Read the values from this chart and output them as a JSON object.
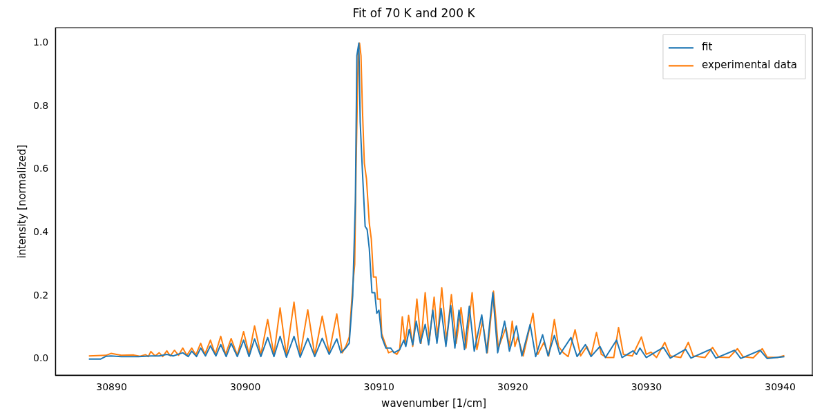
{
  "chart_data": {
    "type": "line",
    "title": "Fit of 70 K and 200 K",
    "xlabel": "wavenumber [1/cm]",
    "ylabel": "intensity [normalized]",
    "xlim": [
      30885.8,
      30942.4
    ],
    "ylim": [
      -0.051,
      1.048
    ],
    "xticks": [
      30890,
      30900,
      30910,
      30920,
      30930,
      30940
    ],
    "yticks": [
      {
        "value": 0,
        "label": "0.0"
      },
      0.2,
      0.4,
      0.6,
      0.8,
      {
        "value": 1,
        "label": "1.0"
      }
    ],
    "grid": false,
    "legend": "top right",
    "marker": "none",
    "line_style": "solid",
    "series": [
      {
        "name": "fit",
        "color": "#1f77b4",
        "x": [
          30888.3,
          30889.17,
          30889.59,
          30889.95,
          30890.72,
          30892.01,
          30892.94,
          30893.56,
          30894.13,
          30894.6,
          30895.32,
          30895.73,
          30895.99,
          30896.35,
          30896.66,
          30897.02,
          30897.39,
          30897.8,
          30898.16,
          30898.57,
          30898.94,
          30899.4,
          30899.87,
          30900.28,
          30900.69,
          30901.16,
          30901.67,
          30902.14,
          30902.6,
          30903.07,
          30903.64,
          30904.1,
          30904.67,
          30905.19,
          30905.75,
          30906.27,
          30906.84,
          30907.15,
          30907.51,
          30907.77,
          30908.03,
          30908.23,
          30908.34,
          30908.49,
          30908.59,
          30908.75,
          30908.96,
          30909.11,
          30909.27,
          30909.47,
          30909.68,
          30909.83,
          30909.99,
          30910.2,
          30910.51,
          30910.87,
          30911.12,
          30911.54,
          30911.85,
          30912.0,
          30912.26,
          30912.52,
          30912.78,
          30913.09,
          30913.45,
          30913.71,
          30914.02,
          30914.33,
          30914.64,
          30915.0,
          30915.36,
          30915.67,
          30915.98,
          30916.39,
          30916.75,
          30917.12,
          30917.68,
          30918.05,
          30918.51,
          30918.87,
          30919.39,
          30919.75,
          30920.27,
          30920.68,
          30921.3,
          30921.71,
          30922.23,
          30922.64,
          30923.11,
          30923.52,
          30924.35,
          30924.81,
          30925.43,
          30925.85,
          30926.52,
          30926.93,
          30927.76,
          30928.17,
          30929.0,
          30929.25,
          30929.51,
          30929.98,
          30931.27,
          30931.78,
          30932.92,
          30933.33,
          30934.78,
          30935.19,
          30936.59,
          30937.05,
          30938.5,
          30939.02,
          30940.31
        ],
        "values": [
          0.0,
          0.0,
          0.009,
          0.01,
          0.008,
          0.008,
          0.01,
          0.01,
          0.015,
          0.01,
          0.02,
          0.008,
          0.025,
          0.008,
          0.035,
          0.01,
          0.042,
          0.01,
          0.046,
          0.008,
          0.05,
          0.008,
          0.06,
          0.008,
          0.064,
          0.008,
          0.068,
          0.008,
          0.072,
          0.006,
          0.072,
          0.006,
          0.066,
          0.008,
          0.066,
          0.015,
          0.064,
          0.02,
          0.035,
          0.05,
          0.2,
          0.5,
          0.96,
          1.0,
          0.75,
          0.6,
          0.42,
          0.41,
          0.35,
          0.21,
          0.21,
          0.145,
          0.155,
          0.07,
          0.035,
          0.035,
          0.02,
          0.03,
          0.06,
          0.04,
          0.094,
          0.045,
          0.12,
          0.05,
          0.11,
          0.045,
          0.155,
          0.05,
          0.16,
          0.04,
          0.17,
          0.035,
          0.155,
          0.03,
          0.167,
          0.025,
          0.14,
          0.02,
          0.21,
          0.02,
          0.12,
          0.025,
          0.105,
          0.01,
          0.11,
          0.008,
          0.077,
          0.01,
          0.075,
          0.015,
          0.068,
          0.008,
          0.046,
          0.008,
          0.04,
          0.005,
          0.06,
          0.005,
          0.026,
          0.015,
          0.035,
          0.005,
          0.037,
          0.003,
          0.031,
          0.003,
          0.031,
          0.003,
          0.028,
          0.002,
          0.028,
          0.002,
          0.008
        ]
      },
      {
        "name": "experimental data",
        "color": "#ff7f0e",
        "x": [
          30888.3,
          30889.59,
          30889.95,
          30890.72,
          30891.65,
          30892.12,
          30892.53,
          30892.74,
          30892.94,
          30893.25,
          30893.56,
          30893.82,
          30894.13,
          30894.39,
          30894.7,
          30895.01,
          30895.32,
          30895.63,
          30895.99,
          30896.3,
          30896.66,
          30896.97,
          30897.39,
          30897.75,
          30898.16,
          30898.52,
          30898.94,
          30899.4,
          30899.87,
          30900.28,
          30900.69,
          30901.16,
          30901.67,
          30902.14,
          30902.6,
          30903.07,
          30903.64,
          30904.1,
          30904.67,
          30905.19,
          30905.75,
          30906.27,
          30906.84,
          30907.25,
          30907.51,
          30907.77,
          30908.03,
          30908.18,
          30908.28,
          30908.44,
          30908.54,
          30908.65,
          30908.75,
          30908.9,
          30909.06,
          30909.27,
          30909.42,
          30909.58,
          30909.78,
          30909.89,
          30910.09,
          30910.2,
          30910.45,
          30910.71,
          30911.02,
          30911.33,
          30911.54,
          30911.74,
          30911.95,
          30912.21,
          30912.52,
          30912.83,
          30913.14,
          30913.45,
          30913.76,
          30914.12,
          30914.38,
          30914.69,
          30915.05,
          30915.41,
          30915.77,
          30916.13,
          30916.5,
          30916.96,
          30917.32,
          30917.74,
          30918.1,
          30918.56,
          30918.92,
          30919.49,
          30919.75,
          30919.96,
          30920.16,
          30920.37,
          30920.78,
          30921.51,
          30921.87,
          30922.33,
          30922.69,
          30923.11,
          30923.42,
          30923.78,
          30924.14,
          30924.66,
          30925.07,
          30925.54,
          30925.85,
          30926.26,
          30926.62,
          30927.03,
          30927.55,
          30927.91,
          30928.27,
          30928.94,
          30929.62,
          30929.98,
          30930.34,
          30930.75,
          30931.37,
          30931.78,
          30932.56,
          30933.13,
          30933.49,
          30934.37,
          30934.94,
          30935.4,
          30936.18,
          30936.8,
          30937.21,
          30937.98,
          30938.66,
          30939.02,
          30939.79,
          30940.31
        ],
        "values": [
          0.01,
          0.012,
          0.018,
          0.012,
          0.013,
          0.009,
          0.014,
          0.008,
          0.024,
          0.01,
          0.02,
          0.008,
          0.026,
          0.01,
          0.028,
          0.012,
          0.035,
          0.012,
          0.035,
          0.013,
          0.05,
          0.015,
          0.06,
          0.015,
          0.072,
          0.015,
          0.065,
          0.012,
          0.087,
          0.015,
          0.105,
          0.013,
          0.125,
          0.015,
          0.162,
          0.012,
          0.18,
          0.012,
          0.156,
          0.013,
          0.136,
          0.02,
          0.143,
          0.02,
          0.04,
          0.07,
          0.23,
          0.3,
          0.6,
          0.97,
          1.0,
          0.96,
          0.8,
          0.62,
          0.57,
          0.43,
          0.38,
          0.26,
          0.26,
          0.19,
          0.19,
          0.08,
          0.05,
          0.02,
          0.025,
          0.015,
          0.03,
          0.134,
          0.05,
          0.138,
          0.04,
          0.19,
          0.05,
          0.21,
          0.06,
          0.196,
          0.07,
          0.226,
          0.06,
          0.204,
          0.05,
          0.163,
          0.035,
          0.21,
          0.03,
          0.12,
          0.02,
          0.215,
          0.035,
          0.1,
          0.04,
          0.12,
          0.04,
          0.07,
          0.01,
          0.145,
          0.015,
          0.053,
          0.01,
          0.125,
          0.04,
          0.02,
          0.008,
          0.093,
          0.01,
          0.04,
          0.01,
          0.084,
          0.015,
          0.005,
          0.005,
          0.1,
          0.015,
          0.01,
          0.07,
          0.015,
          0.022,
          0.005,
          0.053,
          0.01,
          0.005,
          0.053,
          0.01,
          0.005,
          0.037,
          0.006,
          0.005,
          0.033,
          0.008,
          0.004,
          0.033,
          0.006,
          0.005,
          0.011
        ]
      }
    ]
  }
}
